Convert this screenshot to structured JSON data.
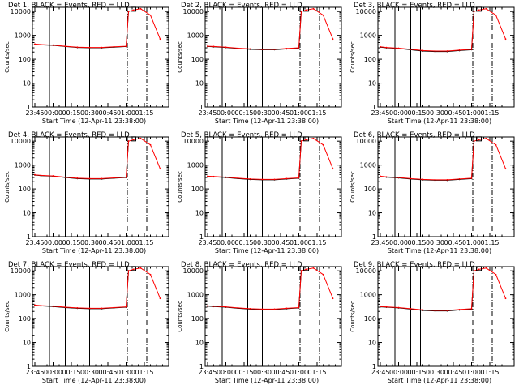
{
  "chart_data": {
    "type": "line",
    "layout": "3x3 grid",
    "ylabel": "Counts/sec",
    "xlabel": "Start Time (12-Apr-11 23:38:00)",
    "ylog": true,
    "ylim": [
      1,
      15000
    ],
    "y_ticks": [
      "1",
      "10",
      "100",
      "1000",
      "10000"
    ],
    "x_ticks": [
      "23:45",
      "00:00",
      "00:15",
      "00:30",
      "00:45",
      "01:00",
      "01:15"
    ],
    "grid": false,
    "legend": "in title",
    "series_colors": {
      "events": "#000000",
      "lld": "#ff0000"
    },
    "panels": [
      {
        "title": "Det  1, BLACK = Events, RED = LLD",
        "series": [
          {
            "name": "Events",
            "x_min": [
              -15,
              -10,
              0,
              10,
              20,
              30,
              40,
              50,
              60,
              62
            ],
            "values": [
              420,
              400,
              380,
              340,
              310,
              300,
              300,
              320,
              340,
              10000
            ]
          },
          {
            "name": "LLD",
            "x_min": [
              -15,
              -10,
              0,
              10,
              20,
              30,
              40,
              50,
              60,
              62,
              66,
              72,
              80,
              88
            ],
            "values": [
              430,
              410,
              390,
              350,
              320,
              310,
              310,
              330,
              350,
              10000,
              11500,
              13000,
              7000,
              700
            ]
          }
        ]
      },
      {
        "title": "Det  2, BLACK = Events, RED = LLD",
        "series": [
          {
            "name": "Events",
            "x_min": [
              -15,
              -10,
              0,
              10,
              20,
              30,
              40,
              50,
              60,
              62
            ],
            "values": [
              340,
              330,
              310,
              280,
              260,
              250,
              250,
              270,
              290,
              10000
            ]
          },
          {
            "name": "LLD",
            "x_min": [
              -15,
              -10,
              0,
              10,
              20,
              30,
              40,
              50,
              60,
              62,
              66,
              72,
              80,
              88
            ],
            "values": [
              350,
              340,
              320,
              290,
              270,
              260,
              260,
              280,
              300,
              10000,
              11500,
              13000,
              7000,
              700
            ]
          }
        ]
      },
      {
        "title": "Det  3, BLACK = Events, RED = LLD",
        "series": [
          {
            "name": "Events",
            "x_min": [
              -15,
              -10,
              0,
              10,
              20,
              30,
              40,
              50,
              60,
              62
            ],
            "values": [
              320,
              300,
              280,
              250,
              220,
              210,
              210,
              230,
              250,
              10000
            ]
          },
          {
            "name": "LLD",
            "x_min": [
              -15,
              -10,
              0,
              10,
              20,
              30,
              40,
              50,
              60,
              62,
              66,
              72,
              80,
              88
            ],
            "values": [
              330,
              310,
              290,
              260,
              230,
              220,
              220,
              240,
              260,
              10000,
              11500,
              13000,
              7000,
              700
            ]
          }
        ]
      },
      {
        "title": "Det  4, BLACK = Events, RED = LLD",
        "series": [
          {
            "name": "Events",
            "x_min": [
              -15,
              -10,
              0,
              10,
              20,
              30,
              40,
              50,
              60,
              62
            ],
            "values": [
              380,
              360,
              340,
              300,
              270,
              260,
              260,
              280,
              300,
              10000
            ]
          },
          {
            "name": "LLD",
            "x_min": [
              -15,
              -10,
              0,
              10,
              20,
              30,
              40,
              50,
              60,
              62,
              66,
              72,
              80,
              88
            ],
            "values": [
              390,
              370,
              350,
              310,
              280,
              270,
              270,
              290,
              310,
              10000,
              11500,
              13000,
              7000,
              700
            ]
          }
        ]
      },
      {
        "title": "Det  5, BLACK = Events, RED = LLD",
        "series": [
          {
            "name": "Events",
            "x_min": [
              -15,
              -10,
              0,
              10,
              20,
              30,
              40,
              50,
              60,
              62
            ],
            "values": [
              330,
              320,
              300,
              270,
              250,
              240,
              240,
              260,
              280,
              10000
            ]
          },
          {
            "name": "LLD",
            "x_min": [
              -15,
              -10,
              0,
              10,
              20,
              30,
              40,
              50,
              60,
              62,
              66,
              72,
              80,
              88
            ],
            "values": [
              340,
              330,
              310,
              280,
              260,
              250,
              250,
              270,
              290,
              10000,
              11500,
              13000,
              7000,
              700
            ]
          }
        ]
      },
      {
        "title": "Det  6, BLACK = Events, RED = LLD",
        "series": [
          {
            "name": "Events",
            "x_min": [
              -15,
              -10,
              0,
              10,
              20,
              30,
              40,
              50,
              60,
              62
            ],
            "values": [
              330,
              310,
              290,
              260,
              240,
              230,
              230,
              250,
              270,
              10000
            ]
          },
          {
            "name": "LLD",
            "x_min": [
              -15,
              -10,
              0,
              10,
              20,
              30,
              40,
              50,
              60,
              62,
              66,
              72,
              80,
              88
            ],
            "values": [
              340,
              320,
              300,
              270,
              250,
              240,
              240,
              260,
              280,
              10000,
              11500,
              13000,
              7000,
              700
            ]
          }
        ]
      },
      {
        "title": "Det  7, BLACK = Events, RED = LLD",
        "series": [
          {
            "name": "Events",
            "x_min": [
              -15,
              -10,
              0,
              10,
              20,
              30,
              40,
              50,
              60,
              62
            ],
            "values": [
              360,
              340,
              320,
              290,
              270,
              260,
              260,
              280,
              300,
              10000
            ]
          },
          {
            "name": "LLD",
            "x_min": [
              -15,
              -10,
              0,
              10,
              20,
              30,
              40,
              50,
              60,
              62,
              66,
              72,
              80,
              88
            ],
            "values": [
              370,
              350,
              330,
              300,
              280,
              270,
              270,
              290,
              310,
              10000,
              11500,
              13000,
              7000,
              700
            ]
          }
        ]
      },
      {
        "title": "Det  8, BLACK = Events, RED = LLD",
        "series": [
          {
            "name": "Events",
            "x_min": [
              -15,
              -10,
              0,
              10,
              20,
              30,
              40,
              50,
              60,
              62
            ],
            "values": [
              330,
              320,
              300,
              270,
              250,
              240,
              240,
              260,
              280,
              10000
            ]
          },
          {
            "name": "LLD",
            "x_min": [
              -15,
              -10,
              0,
              10,
              20,
              30,
              40,
              50,
              60,
              62,
              66,
              72,
              80,
              88
            ],
            "values": [
              340,
              330,
              310,
              280,
              260,
              250,
              250,
              270,
              290,
              10000,
              11500,
              13000,
              7000,
              700
            ]
          }
        ]
      },
      {
        "title": "Det  9, BLACK = Events, RED = LLD",
        "series": [
          {
            "name": "Events",
            "x_min": [
              -15,
              -10,
              0,
              10,
              20,
              30,
              40,
              50,
              60,
              62
            ],
            "values": [
              310,
              300,
              280,
              250,
              220,
              210,
              210,
              230,
              250,
              10000
            ]
          },
          {
            "name": "LLD",
            "x_min": [
              -15,
              -10,
              0,
              10,
              20,
              30,
              40,
              50,
              60,
              62,
              66,
              72,
              80,
              88
            ],
            "values": [
              320,
              310,
              290,
              260,
              230,
              220,
              220,
              240,
              260,
              10000,
              11500,
              13000,
              7000,
              700
            ]
          }
        ]
      }
    ],
    "vertical_markers": {
      "solid_x_min": [
        -3,
        10,
        18,
        30
      ],
      "dashdot_x_min": [
        61,
        77
      ]
    }
  }
}
